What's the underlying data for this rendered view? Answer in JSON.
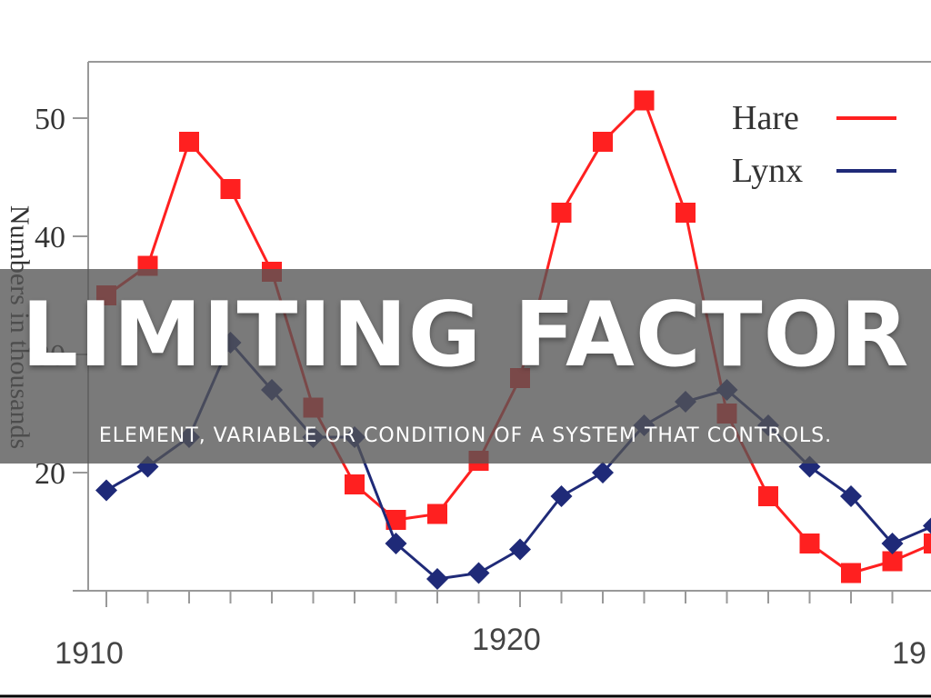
{
  "banner": {
    "title": "LIMITING FACTOR",
    "subtitle": "ELEMENT, VARIABLE OR CONDITION OF A SYSTEM THAT CONTROLS."
  },
  "chart_data": {
    "type": "line",
    "title": "",
    "xlabel": "",
    "ylabel": "Numbers in thousands",
    "x": [
      1910,
      1911,
      1912,
      1913,
      1914,
      1915,
      1916,
      1917,
      1918,
      1919,
      1920,
      1921,
      1922,
      1923,
      1924,
      1925,
      1926,
      1927,
      1928,
      1929,
      1930
    ],
    "series": [
      {
        "name": "Hare",
        "color": "#ff2020",
        "marker": "square",
        "values": [
          35,
          37.5,
          48,
          44,
          37,
          25.5,
          19,
          16,
          16.5,
          21,
          28,
          42,
          48,
          51.5,
          42,
          25,
          18,
          14,
          11.5,
          12.5,
          14
        ]
      },
      {
        "name": "Lynx",
        "color": "#1f2a78",
        "marker": "diamond",
        "values": [
          18.5,
          20.5,
          23,
          31,
          27,
          23,
          23,
          14,
          11,
          11.5,
          13.5,
          18,
          20,
          24,
          26,
          27,
          24,
          20.5,
          18,
          14,
          15.5
        ]
      }
    ],
    "xticks": [
      "1910",
      "1920",
      "19"
    ],
    "yticks": [
      "20",
      "30",
      "40",
      "50"
    ],
    "xlim": [
      1910,
      1930
    ],
    "ylim": [
      10,
      54
    ],
    "grid": false,
    "legend": "top-right"
  }
}
